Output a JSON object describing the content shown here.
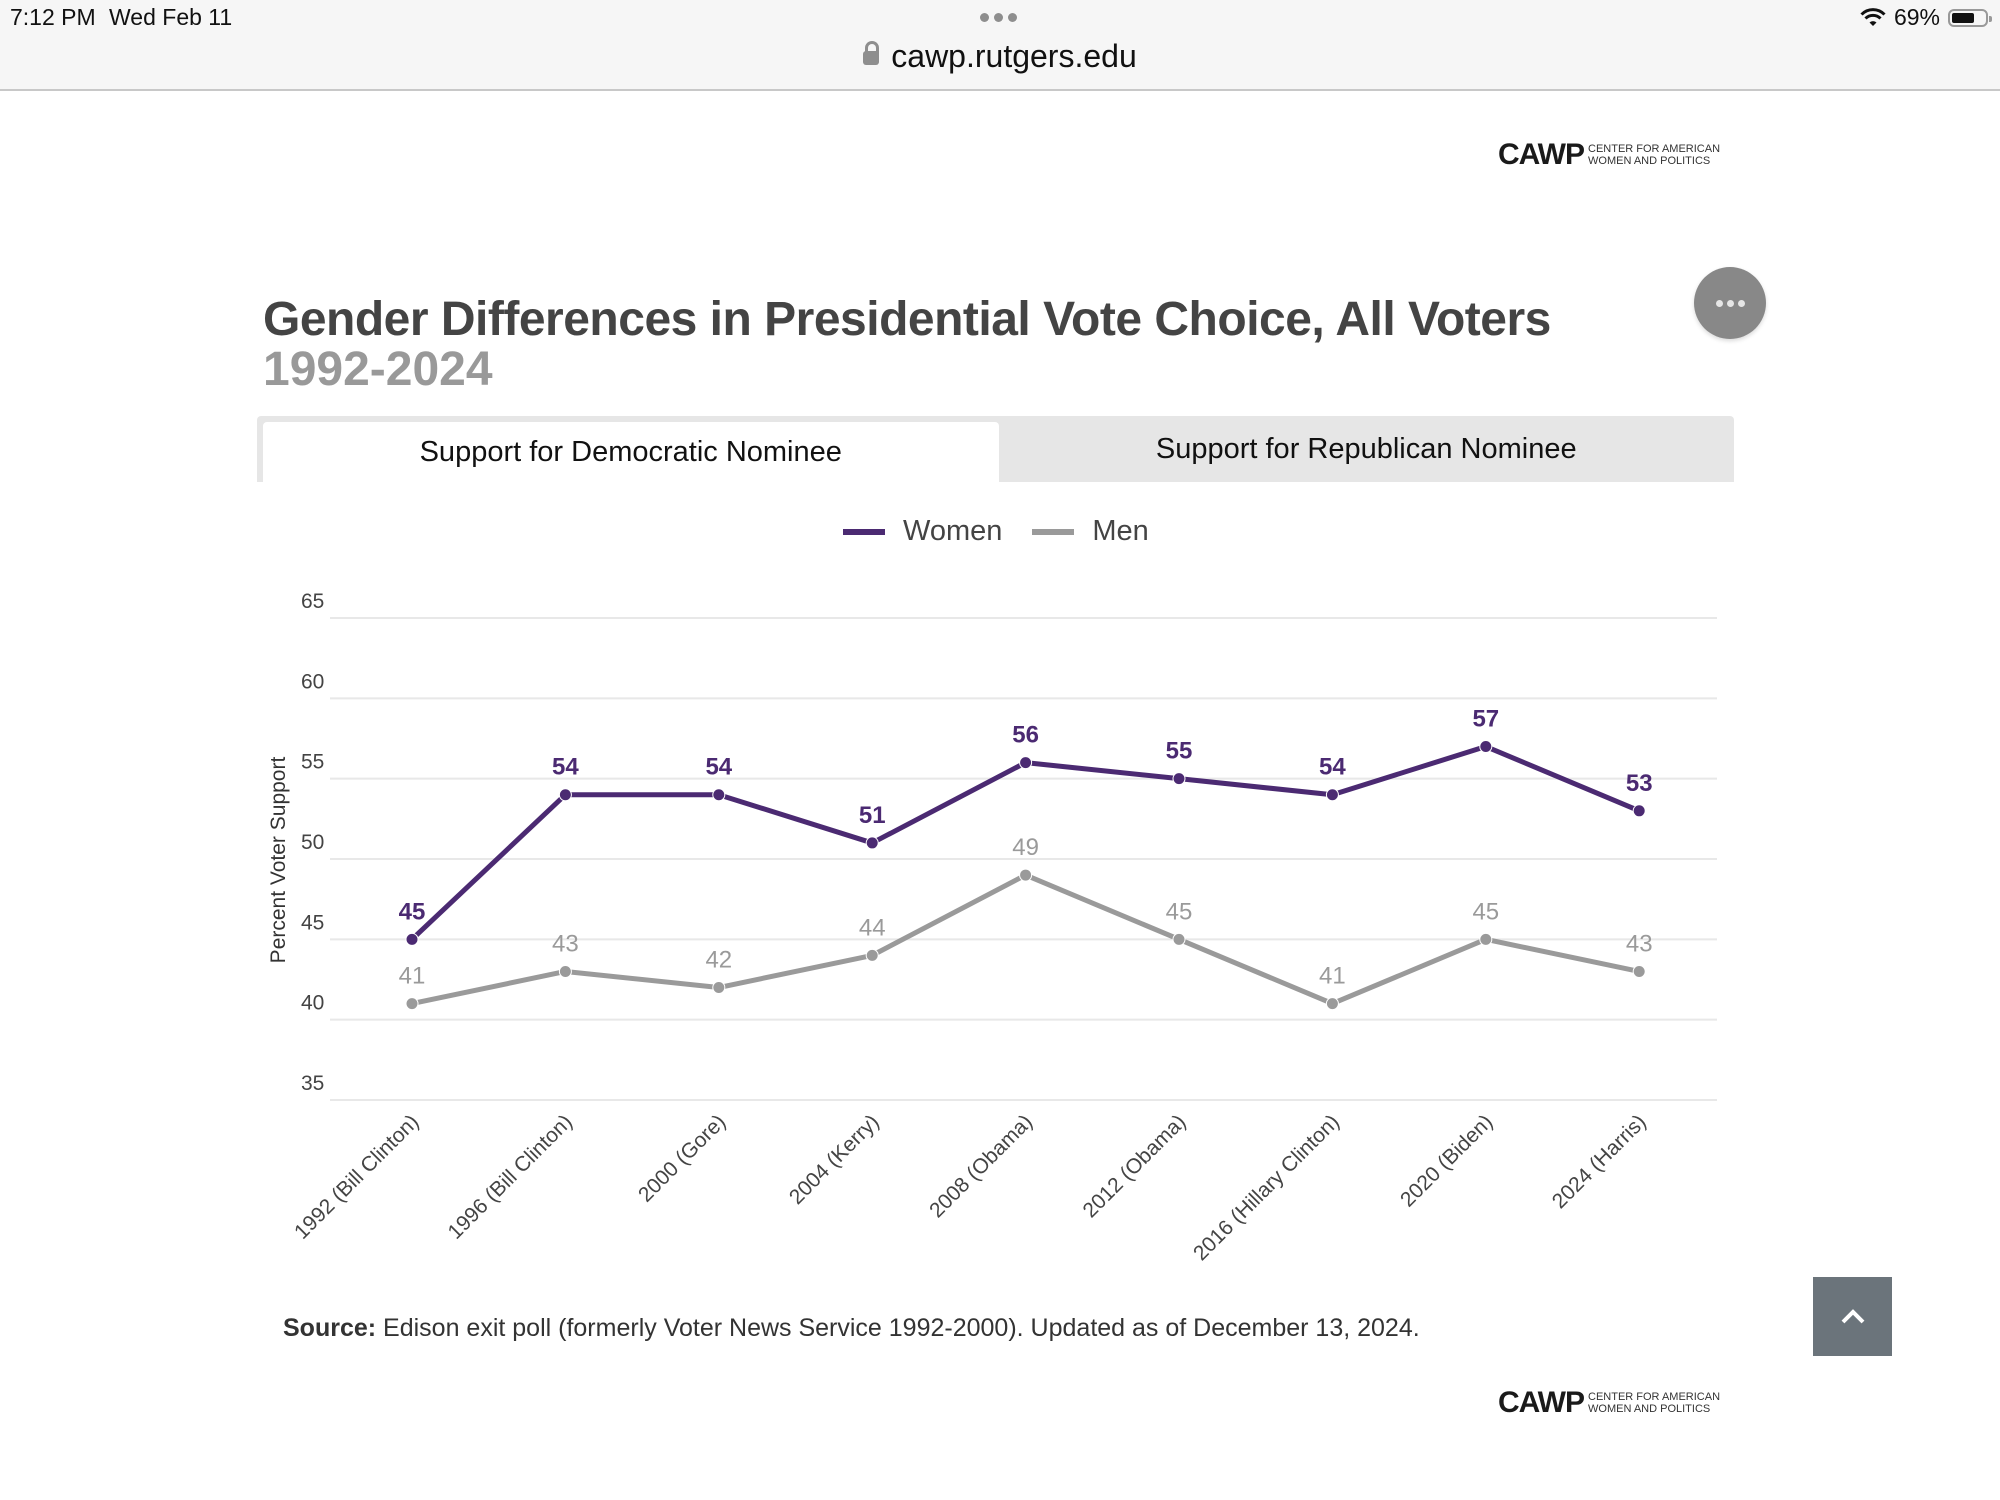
{
  "status_bar": {
    "time": "7:12 PM",
    "date": "Wed Feb 11",
    "url": "cawp.rutgers.edu",
    "battery": "69%",
    "battery_level": 0.69,
    "icons": [
      "lock-icon",
      "wifi-icon",
      "battery-icon",
      "more-dots-icon"
    ]
  },
  "logo": {
    "mark": "CAWP",
    "line1": "Center for American",
    "line2": "Women and Politics"
  },
  "header": {
    "title": "Gender Differences in Presidential Vote Choice, All Voters",
    "subtitle": "1992-2024",
    "menu_icon": "ellipsis-icon"
  },
  "tabs": [
    {
      "label": "Support for Democratic Nominee",
      "active": true
    },
    {
      "label": "Support for Republican Nominee",
      "active": false
    }
  ],
  "colors": {
    "women": "#4b2a72",
    "men": "#9a9a9a",
    "grid": "#e8e8e8"
  },
  "chart_data": {
    "type": "line",
    "title": "Gender Differences in Presidential Vote Choice, All Voters",
    "subtitle": "1992-2024",
    "xlabel": "",
    "ylabel": "Percent Voter Support",
    "ylim": [
      35,
      65
    ],
    "yticks": [
      35,
      40,
      45,
      50,
      55,
      60,
      65
    ],
    "grid": true,
    "legend_position": "top-center",
    "categories": [
      "1992 (Bill Clinton)",
      "1996 (Bill Clinton)",
      "2000 (Gore)",
      "2004 (Kerry)",
      "2008 (Obama)",
      "2012 (Obama)",
      "2016 (Hillary Clinton)",
      "2020 (Biden)",
      "2024 (Harris)"
    ],
    "series": [
      {
        "name": "Women",
        "values": [
          45,
          54,
          54,
          51,
          56,
          55,
          54,
          57,
          53
        ]
      },
      {
        "name": "Men",
        "values": [
          41,
          43,
          42,
          44,
          49,
          45,
          41,
          45,
          43
        ]
      }
    ]
  },
  "source": {
    "label": "Source:",
    "text": " Edison exit poll (formerly Voter News Service 1992-2000). Updated as of December 13, 2024."
  },
  "back_to_top_icon": "chevron-up-icon"
}
